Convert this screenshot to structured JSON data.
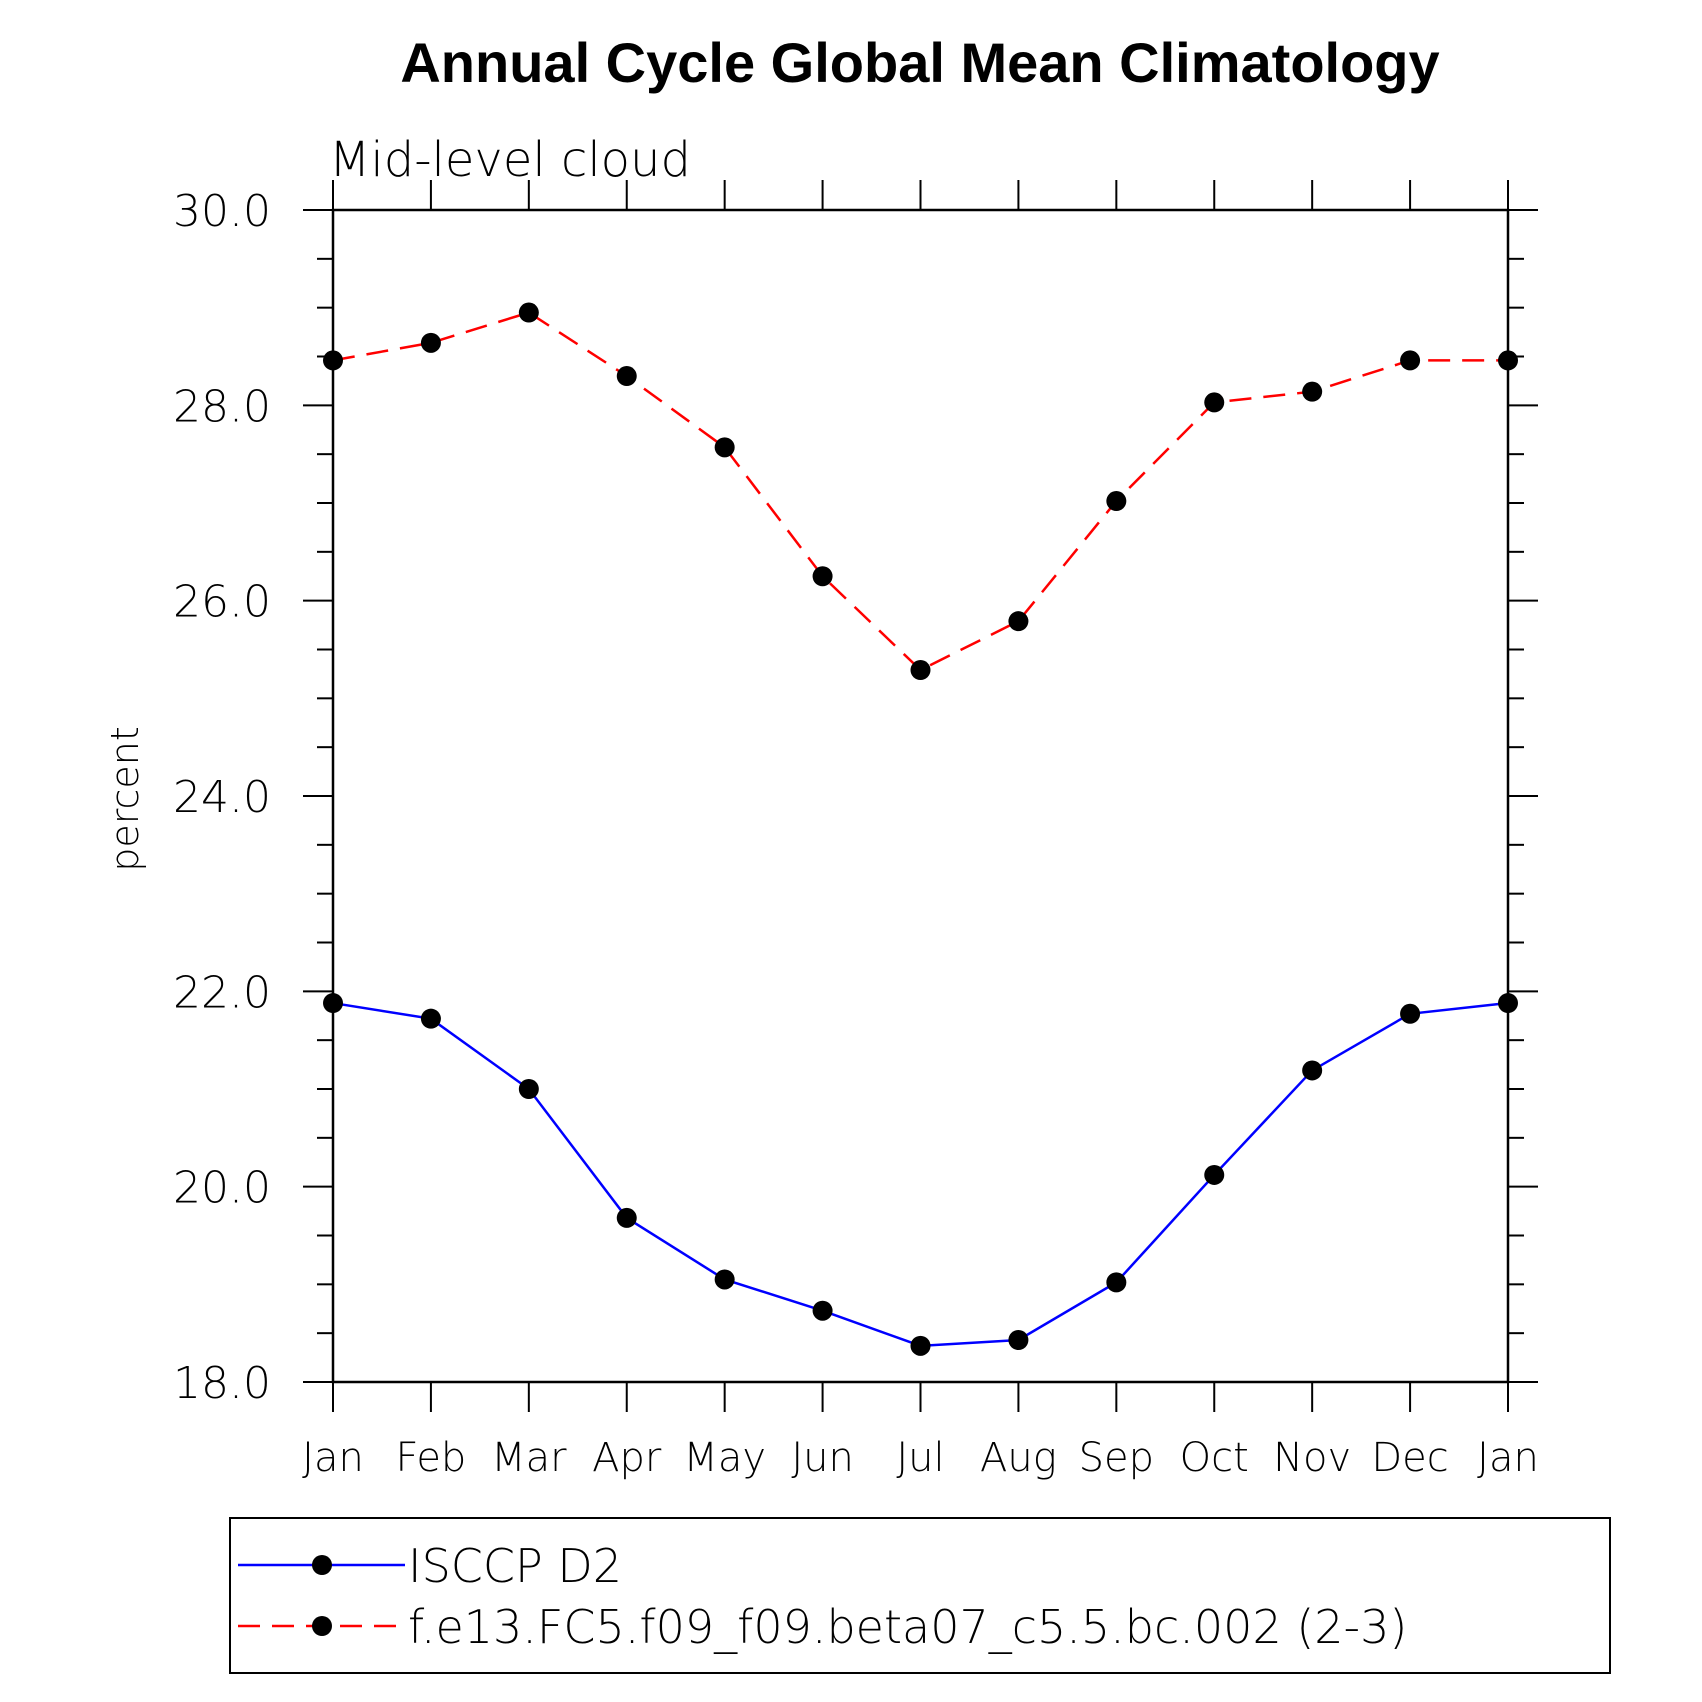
{
  "chart_data": {
    "type": "line",
    "title": "Annual Cycle Global Mean Climatology",
    "subtitle": "Mid-level cloud",
    "xlabel": "",
    "ylabel": "percent",
    "categories": [
      "Jan",
      "Feb",
      "Mar",
      "Apr",
      "May",
      "Jun",
      "Jul",
      "Aug",
      "Sep",
      "Oct",
      "Nov",
      "Dec",
      "Jan"
    ],
    "ylim": [
      18.0,
      30.0
    ],
    "yticks": [
      "18.0",
      "20.0",
      "22.0",
      "24.0",
      "26.0",
      "28.0",
      "30.0"
    ],
    "legend_position": "bottom",
    "grid": false,
    "series": [
      {
        "name": "ISCCP D2",
        "color": "#0000ff",
        "style": "solid",
        "marker": "filled-circle",
        "values": [
          21.88,
          21.72,
          21.0,
          19.68,
          19.05,
          18.73,
          18.37,
          18.43,
          19.02,
          20.12,
          21.19,
          21.77,
          21.88
        ]
      },
      {
        "name": "f.e13.FC5.f09_f09.beta07_c5.5.bc.002 (2-3)",
        "color": "#ff0000",
        "style": "dashed",
        "marker": "filled-circle",
        "values": [
          28.46,
          28.64,
          28.95,
          28.3,
          27.57,
          26.25,
          25.29,
          25.79,
          27.02,
          28.03,
          28.14,
          28.46,
          28.46
        ]
      }
    ]
  }
}
